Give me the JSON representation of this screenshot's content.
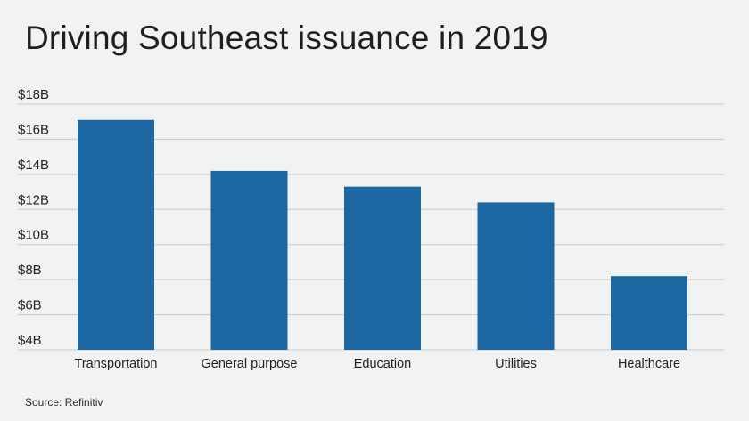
{
  "title": "Driving Southeast issuance in 2019",
  "source": "Source: Refinitiv",
  "colors": {
    "bar": "#1c67a1",
    "grid": "#c9c9c9",
    "background": "#f1f2f2"
  },
  "chart_data": {
    "type": "bar",
    "title": "Driving Southeast issuance in 2019",
    "xlabel": "",
    "ylabel": "",
    "categories": [
      "Transportation",
      "General purpose",
      "Education",
      "Utilities",
      "Healthcare"
    ],
    "values": [
      17.1,
      14.2,
      13.3,
      12.4,
      8.2
    ],
    "ylim": [
      4,
      18
    ],
    "yticks": [
      4,
      6,
      8,
      10,
      12,
      14,
      16,
      18
    ],
    "ytick_labels": [
      "$4B",
      "$6B",
      "$8B",
      "$10B",
      "$12B",
      "$14B",
      "$16B",
      "$18B"
    ],
    "grid": true,
    "legend": "none"
  }
}
